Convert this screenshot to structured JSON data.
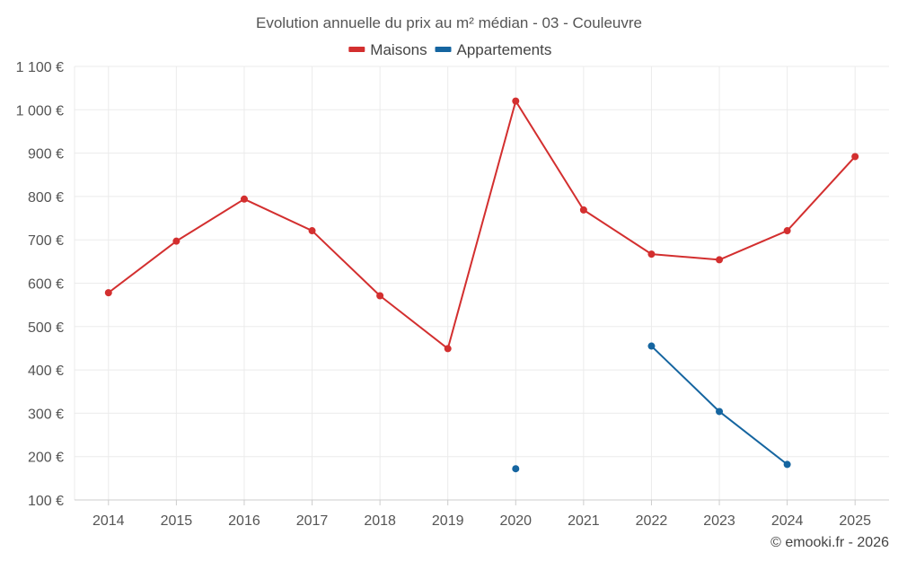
{
  "chart_data": {
    "type": "line",
    "title": "Evolution annuelle du prix au m² médian - 03 - Couleuvre",
    "categories": [
      "2014",
      "2015",
      "2016",
      "2017",
      "2018",
      "2019",
      "2020",
      "2021",
      "2022",
      "2023",
      "2024",
      "2025"
    ],
    "ylim": [
      100,
      1100
    ],
    "yticks": [
      100,
      200,
      300,
      400,
      500,
      600,
      700,
      800,
      900,
      1000,
      1100
    ],
    "ytick_labels": [
      "100 €",
      "200 €",
      "300 €",
      "400 €",
      "500 €",
      "600 €",
      "700 €",
      "800 €",
      "900 €",
      "1 000 €",
      "1 100 €"
    ],
    "grid": true,
    "legend_position": "top-center",
    "series": [
      {
        "name": "Maisons",
        "color": "#d32f2f",
        "values": [
          578,
          697,
          794,
          721,
          571,
          449,
          1020,
          769,
          667,
          654,
          721,
          892
        ]
      },
      {
        "name": "Appartements",
        "color": "#1565a0",
        "values": [
          null,
          null,
          null,
          null,
          null,
          null,
          172,
          null,
          455,
          304,
          182,
          null
        ]
      }
    ]
  },
  "credit": "© emooki.fr - 2026"
}
